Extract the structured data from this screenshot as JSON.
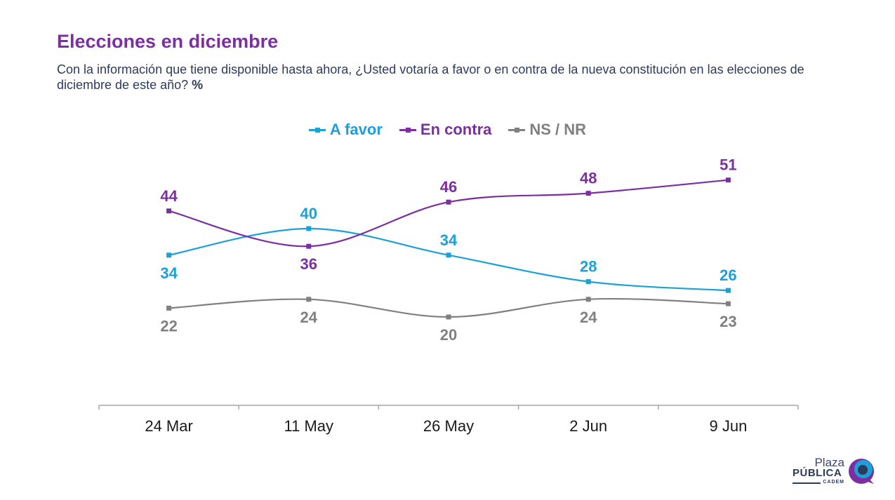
{
  "header": {
    "title": "Elecciones en diciembre",
    "subtitle": "Con la información que tiene disponible hasta ahora, ¿Usted votaría a favor o en contra de la nueva constitución en las elecciones de diciembre de este año?",
    "unit": "%"
  },
  "chart_data": {
    "type": "line",
    "categories": [
      "24 Mar",
      "11 May",
      "26 May",
      "2 Jun",
      "9 Jun"
    ],
    "ylim": [
      0,
      60
    ],
    "grid": false,
    "legend_position": "top-center",
    "data_labels": true,
    "series": [
      {
        "name": "A favor",
        "color": "#1BA0D8",
        "values": [
          34,
          40,
          34,
          28,
          26
        ],
        "label_side": [
          "below",
          "above",
          "above",
          "above",
          "above"
        ]
      },
      {
        "name": "En contra",
        "color": "#7B2FA0",
        "values": [
          44,
          36,
          46,
          48,
          51
        ],
        "label_side": [
          "above",
          "below",
          "above",
          "above",
          "above"
        ]
      },
      {
        "name": "NS / NR",
        "color": "#808080",
        "values": [
          22,
          24,
          20,
          24,
          23
        ],
        "label_side": [
          "below",
          "below",
          "below",
          "below",
          "below"
        ]
      }
    ]
  },
  "logo": {
    "line1": "Plaza",
    "line2": "PÚBLICA",
    "line3": "CADEM",
    "colors": {
      "navy": "#2D3A5C",
      "purple": "#7B2FA0",
      "cyan": "#1BA0D8"
    }
  }
}
